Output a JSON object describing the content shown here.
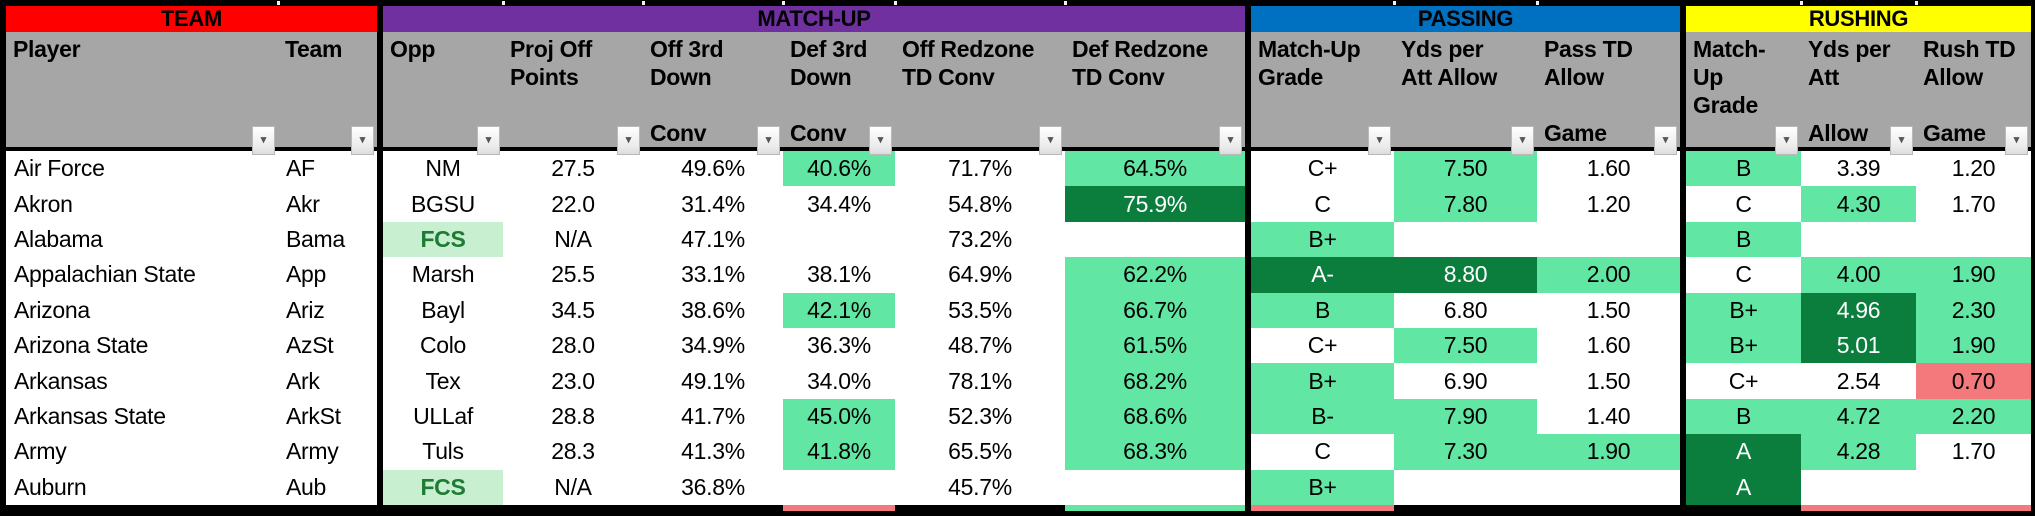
{
  "title": "College Football Defense Match-Up Spreadsheet",
  "sections": [
    {
      "id": "team",
      "label": "TEAM",
      "color": "#FF0000",
      "text_color": "#000000",
      "columns": [
        "player",
        "team"
      ]
    },
    {
      "id": "matchup",
      "label": "MATCH-UP",
      "color": "#7030A0",
      "text_color": "#000000",
      "columns": [
        "opp",
        "proj",
        "off3rd",
        "def3rd",
        "offrz",
        "defrz"
      ]
    },
    {
      "id": "passing",
      "label": "PASSING",
      "color": "#0070C0",
      "text_color": "#000000",
      "columns": [
        "p_grade",
        "p_yds",
        "p_td"
      ]
    },
    {
      "id": "rushing",
      "label": "RUSHING",
      "color": "#FFFF00",
      "text_color": "#000000",
      "columns": [
        "r_grade",
        "r_yds",
        "r_td"
      ]
    }
  ],
  "columns": {
    "player": {
      "lines": [
        "Player"
      ],
      "align": "left"
    },
    "team": {
      "lines": [
        "Team"
      ],
      "align": "left"
    },
    "opp": {
      "lines": [
        "Opp"
      ],
      "align": "center"
    },
    "proj": {
      "lines": [
        "Proj Off",
        "Points"
      ],
      "align": "center"
    },
    "off3rd": {
      "lines": [
        "Off 3rd",
        "Down",
        "Conv"
      ],
      "align": "center"
    },
    "def3rd": {
      "lines": [
        "Def 3rd",
        "Down",
        "Conv"
      ],
      "align": "center"
    },
    "offrz": {
      "lines": [
        "Off Redzone",
        "TD Conv"
      ],
      "align": "center"
    },
    "defrz": {
      "lines": [
        "Def Redzone",
        "TD Conv"
      ],
      "align": "center"
    },
    "p_grade": {
      "lines": [
        "Match-Up",
        "Grade"
      ],
      "align": "center"
    },
    "p_yds": {
      "lines": [
        "Yds per",
        "Att Allow"
      ],
      "align": "center"
    },
    "p_td": {
      "lines": [
        "Pass TD",
        "Allow",
        "Game"
      ],
      "align": "center"
    },
    "r_grade": {
      "lines": [
        "Match-Up",
        "Grade"
      ],
      "align": "center"
    },
    "r_yds": {
      "lines": [
        "Yds per",
        "Att",
        "Allow"
      ],
      "align": "center"
    },
    "r_td": {
      "lines": [
        "Rush TD",
        "Allow",
        "Game"
      ],
      "align": "center"
    }
  },
  "highlight_colors": {
    "header_gray": "#A6A6A6",
    "green": "#62E6A3",
    "dark_green": "#0B7E3E",
    "dark_green_text": "#FFFFFF",
    "light_green": "#C8EFD0",
    "light_green_text": "#1E7B34",
    "red": "#F4797C"
  },
  "rows": [
    {
      "player": [
        "Air Force",
        ""
      ],
      "team": [
        "AF",
        ""
      ],
      "opp": [
        "NM",
        ""
      ],
      "proj": [
        "27.5",
        ""
      ],
      "off3rd": [
        "49.6%",
        ""
      ],
      "def3rd": [
        "40.6%",
        "g"
      ],
      "offrz": [
        "71.7%",
        ""
      ],
      "defrz": [
        "64.5%",
        "g"
      ],
      "p_grade": [
        "C+",
        ""
      ],
      "p_yds": [
        "7.50",
        "g"
      ],
      "p_td": [
        "1.60",
        ""
      ],
      "r_grade": [
        "B",
        "g"
      ],
      "r_yds": [
        "3.39",
        ""
      ],
      "r_td": [
        "1.20",
        ""
      ]
    },
    {
      "player": [
        "Akron",
        ""
      ],
      "team": [
        "Akr",
        ""
      ],
      "opp": [
        "BGSU",
        ""
      ],
      "proj": [
        "22.0",
        ""
      ],
      "off3rd": [
        "31.4%",
        ""
      ],
      "def3rd": [
        "34.4%",
        ""
      ],
      "offrz": [
        "54.8%",
        ""
      ],
      "defrz": [
        "75.9%",
        "dg"
      ],
      "p_grade": [
        "C",
        ""
      ],
      "p_yds": [
        "7.80",
        "g"
      ],
      "p_td": [
        "1.20",
        ""
      ],
      "r_grade": [
        "C",
        ""
      ],
      "r_yds": [
        "4.30",
        "g"
      ],
      "r_td": [
        "1.70",
        ""
      ]
    },
    {
      "player": [
        "Alabama",
        ""
      ],
      "team": [
        "Bama",
        ""
      ],
      "opp": [
        "FCS",
        "lg"
      ],
      "proj": [
        "N/A",
        ""
      ],
      "off3rd": [
        "47.1%",
        ""
      ],
      "def3rd": [
        "",
        ""
      ],
      "offrz": [
        "73.2%",
        ""
      ],
      "defrz": [
        "",
        ""
      ],
      "p_grade": [
        "B+",
        "g"
      ],
      "p_yds": [
        "",
        ""
      ],
      "p_td": [
        "",
        ""
      ],
      "r_grade": [
        "B",
        "g"
      ],
      "r_yds": [
        "",
        ""
      ],
      "r_td": [
        "",
        ""
      ]
    },
    {
      "player": [
        "Appalachian State",
        ""
      ],
      "team": [
        "App",
        ""
      ],
      "opp": [
        "Marsh",
        ""
      ],
      "proj": [
        "25.5",
        ""
      ],
      "off3rd": [
        "33.1%",
        ""
      ],
      "def3rd": [
        "38.1%",
        ""
      ],
      "offrz": [
        "64.9%",
        ""
      ],
      "defrz": [
        "62.2%",
        "g"
      ],
      "p_grade": [
        "A-",
        "dg"
      ],
      "p_yds": [
        "8.80",
        "dg"
      ],
      "p_td": [
        "2.00",
        "g"
      ],
      "r_grade": [
        "C",
        ""
      ],
      "r_yds": [
        "4.00",
        "g"
      ],
      "r_td": [
        "1.90",
        "g"
      ]
    },
    {
      "player": [
        "Arizona",
        ""
      ],
      "team": [
        "Ariz",
        ""
      ],
      "opp": [
        "Bayl",
        ""
      ],
      "proj": [
        "34.5",
        ""
      ],
      "off3rd": [
        "38.6%",
        ""
      ],
      "def3rd": [
        "42.1%",
        "g"
      ],
      "offrz": [
        "53.5%",
        ""
      ],
      "defrz": [
        "66.7%",
        "g"
      ],
      "p_grade": [
        "B",
        "g"
      ],
      "p_yds": [
        "6.80",
        ""
      ],
      "p_td": [
        "1.50",
        ""
      ],
      "r_grade": [
        "B+",
        "g"
      ],
      "r_yds": [
        "4.96",
        "dg"
      ],
      "r_td": [
        "2.30",
        "g"
      ]
    },
    {
      "player": [
        "Arizona State",
        ""
      ],
      "team": [
        "AzSt",
        ""
      ],
      "opp": [
        "Colo",
        ""
      ],
      "proj": [
        "28.0",
        ""
      ],
      "off3rd": [
        "34.9%",
        ""
      ],
      "def3rd": [
        "36.3%",
        ""
      ],
      "offrz": [
        "48.7%",
        ""
      ],
      "defrz": [
        "61.5%",
        "g"
      ],
      "p_grade": [
        "C+",
        ""
      ],
      "p_yds": [
        "7.50",
        "g"
      ],
      "p_td": [
        "1.60",
        ""
      ],
      "r_grade": [
        "B+",
        "g"
      ],
      "r_yds": [
        "5.01",
        "dg"
      ],
      "r_td": [
        "1.90",
        "g"
      ]
    },
    {
      "player": [
        "Arkansas",
        ""
      ],
      "team": [
        "Ark",
        ""
      ],
      "opp": [
        "Tex",
        ""
      ],
      "proj": [
        "23.0",
        ""
      ],
      "off3rd": [
        "49.1%",
        ""
      ],
      "def3rd": [
        "34.0%",
        ""
      ],
      "offrz": [
        "78.1%",
        ""
      ],
      "defrz": [
        "68.2%",
        "g"
      ],
      "p_grade": [
        "B+",
        "g"
      ],
      "p_yds": [
        "6.90",
        ""
      ],
      "p_td": [
        "1.50",
        ""
      ],
      "r_grade": [
        "C+",
        ""
      ],
      "r_yds": [
        "2.54",
        ""
      ],
      "r_td": [
        "0.70",
        "r"
      ]
    },
    {
      "player": [
        "Arkansas State",
        ""
      ],
      "team": [
        "ArkSt",
        ""
      ],
      "opp": [
        "ULLaf",
        ""
      ],
      "proj": [
        "28.8",
        ""
      ],
      "off3rd": [
        "41.7%",
        ""
      ],
      "def3rd": [
        "45.0%",
        "g"
      ],
      "offrz": [
        "52.3%",
        ""
      ],
      "defrz": [
        "68.6%",
        "g"
      ],
      "p_grade": [
        "B-",
        "g"
      ],
      "p_yds": [
        "7.90",
        "g"
      ],
      "p_td": [
        "1.40",
        ""
      ],
      "r_grade": [
        "B",
        "g"
      ],
      "r_yds": [
        "4.72",
        "g"
      ],
      "r_td": [
        "2.20",
        "g"
      ]
    },
    {
      "player": [
        "Army",
        ""
      ],
      "team": [
        "Army",
        ""
      ],
      "opp": [
        "Tuls",
        ""
      ],
      "proj": [
        "28.3",
        ""
      ],
      "off3rd": [
        "41.3%",
        ""
      ],
      "def3rd": [
        "41.8%",
        "g"
      ],
      "offrz": [
        "65.5%",
        ""
      ],
      "defrz": [
        "68.3%",
        "g"
      ],
      "p_grade": [
        "C",
        ""
      ],
      "p_yds": [
        "7.30",
        "g"
      ],
      "p_td": [
        "1.90",
        "g"
      ],
      "r_grade": [
        "A",
        "dg"
      ],
      "r_yds": [
        "4.28",
        "g"
      ],
      "r_td": [
        "1.70",
        ""
      ]
    },
    {
      "player": [
        "Auburn",
        ""
      ],
      "team": [
        "Aub",
        ""
      ],
      "opp": [
        "FCS",
        "lg"
      ],
      "proj": [
        "N/A",
        ""
      ],
      "off3rd": [
        "36.8%",
        ""
      ],
      "def3rd": [
        "",
        ""
      ],
      "offrz": [
        "45.7%",
        ""
      ],
      "defrz": [
        "",
        ""
      ],
      "p_grade": [
        "B+",
        "g"
      ],
      "p_yds": [
        "",
        ""
      ],
      "p_td": [
        "",
        ""
      ],
      "r_grade": [
        "A",
        "dg"
      ],
      "r_yds": [
        "",
        ""
      ],
      "r_td": [
        "",
        ""
      ]
    }
  ],
  "filter_icon": "▾",
  "bottom_peek": {
    "def3rd": "red",
    "defrz": "green",
    "p_grade": "red",
    "r_yds": "red",
    "r_td": "red"
  }
}
